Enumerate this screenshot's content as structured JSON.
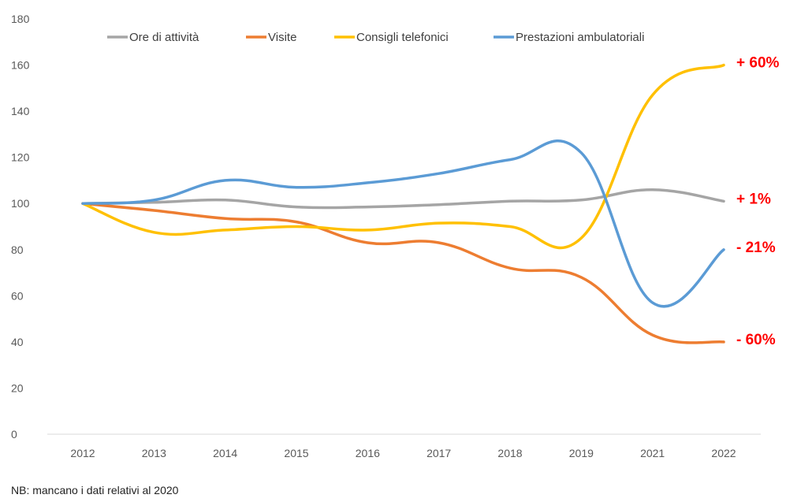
{
  "chart_data": {
    "type": "line",
    "categories": [
      "2012",
      "2013",
      "2014",
      "2015",
      "2016",
      "2017",
      "2018",
      "2019",
      "2021",
      "2022"
    ],
    "ylim": [
      0,
      180
    ],
    "yticks": [
      0,
      20,
      40,
      60,
      80,
      100,
      120,
      140,
      160,
      180
    ],
    "grid": false,
    "legend_position": "top",
    "series": [
      {
        "name": "Ore di attività",
        "color": "#a5a5a5",
        "values": [
          100,
          100.5,
          101.5,
          98.5,
          98.5,
          99.5,
          101,
          101.5,
          106,
          101
        ]
      },
      {
        "name": "Visite",
        "color": "#ed7d31",
        "values": [
          100,
          97,
          93.5,
          92,
          83,
          83,
          72,
          68,
          43,
          40
        ]
      },
      {
        "name": "Consigli telefonici",
        "color": "#ffc000",
        "values": [
          100,
          87.5,
          88.5,
          90,
          88.5,
          91.5,
          90,
          85,
          147,
          160
        ]
      },
      {
        "name": "Prestazioni ambulatoriali",
        "color": "#5b9bd5",
        "values": [
          100,
          101.5,
          110,
          107,
          109,
          113,
          119,
          122,
          57,
          80
        ]
      }
    ],
    "annotations": [
      {
        "series": "Consigli telefonici",
        "text": "+ 60%"
      },
      {
        "series": "Ore di attività",
        "text": "+ 1%"
      },
      {
        "series": "Prestazioni ambulatoriali",
        "text": "- 21%"
      },
      {
        "series": "Visite",
        "text": "- 60%"
      }
    ],
    "annotation_color": "#ff0000",
    "note": "NB: mancano i dati relativi al 2020"
  }
}
